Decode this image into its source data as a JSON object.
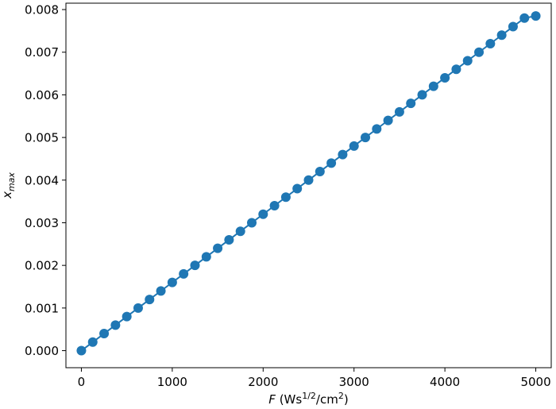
{
  "chart_data": {
    "type": "line",
    "title": "",
    "xlabel": {
      "var": "F",
      "pre": " (Ws",
      "sup1": "1/2",
      "mid": "/cm",
      "sup2": "2",
      "post": ")"
    },
    "ylabel": {
      "var": "x",
      "sub": "max"
    },
    "xlim": [
      -170,
      5170
    ],
    "ylim": [
      -0.0004,
      0.00815
    ],
    "xticks": [
      0,
      1000,
      2000,
      3000,
      4000,
      5000
    ],
    "xtick_labels": [
      "0",
      "1000",
      "2000",
      "3000",
      "4000",
      "5000"
    ],
    "yticks": [
      0.0,
      0.001,
      0.002,
      0.003,
      0.004,
      0.005,
      0.006,
      0.007,
      0.008
    ],
    "ytick_labels": [
      "0.000",
      "0.001",
      "0.002",
      "0.003",
      "0.004",
      "0.005",
      "0.006",
      "0.007",
      "0.008"
    ],
    "grid": false,
    "series": [
      {
        "color": "#1f77b4",
        "marker": "circle",
        "x": [
          0,
          125,
          250,
          375,
          500,
          625,
          750,
          875,
          1000,
          1125,
          1250,
          1375,
          1500,
          1625,
          1750,
          1875,
          2000,
          2125,
          2250,
          2375,
          2500,
          2625,
          2750,
          2875,
          3000,
          3125,
          3250,
          3375,
          3500,
          3625,
          3750,
          3875,
          4000,
          4125,
          4250,
          4375,
          4500,
          4625,
          4750,
          4875,
          5000
        ],
        "y": [
          0.0,
          0.0002,
          0.0004,
          0.0006,
          0.0008,
          0.001,
          0.0012,
          0.0014,
          0.0016,
          0.0018,
          0.002,
          0.0022,
          0.0024,
          0.0026,
          0.0028,
          0.003,
          0.0032,
          0.0034,
          0.0036,
          0.0038,
          0.004,
          0.0042,
          0.0044,
          0.0046,
          0.0048,
          0.005,
          0.0052,
          0.0054,
          0.0056,
          0.0058,
          0.006,
          0.0062,
          0.0064,
          0.0066,
          0.0068,
          0.007,
          0.0072,
          0.0074,
          0.0076,
          0.0078,
          0.00785
        ]
      }
    ]
  }
}
